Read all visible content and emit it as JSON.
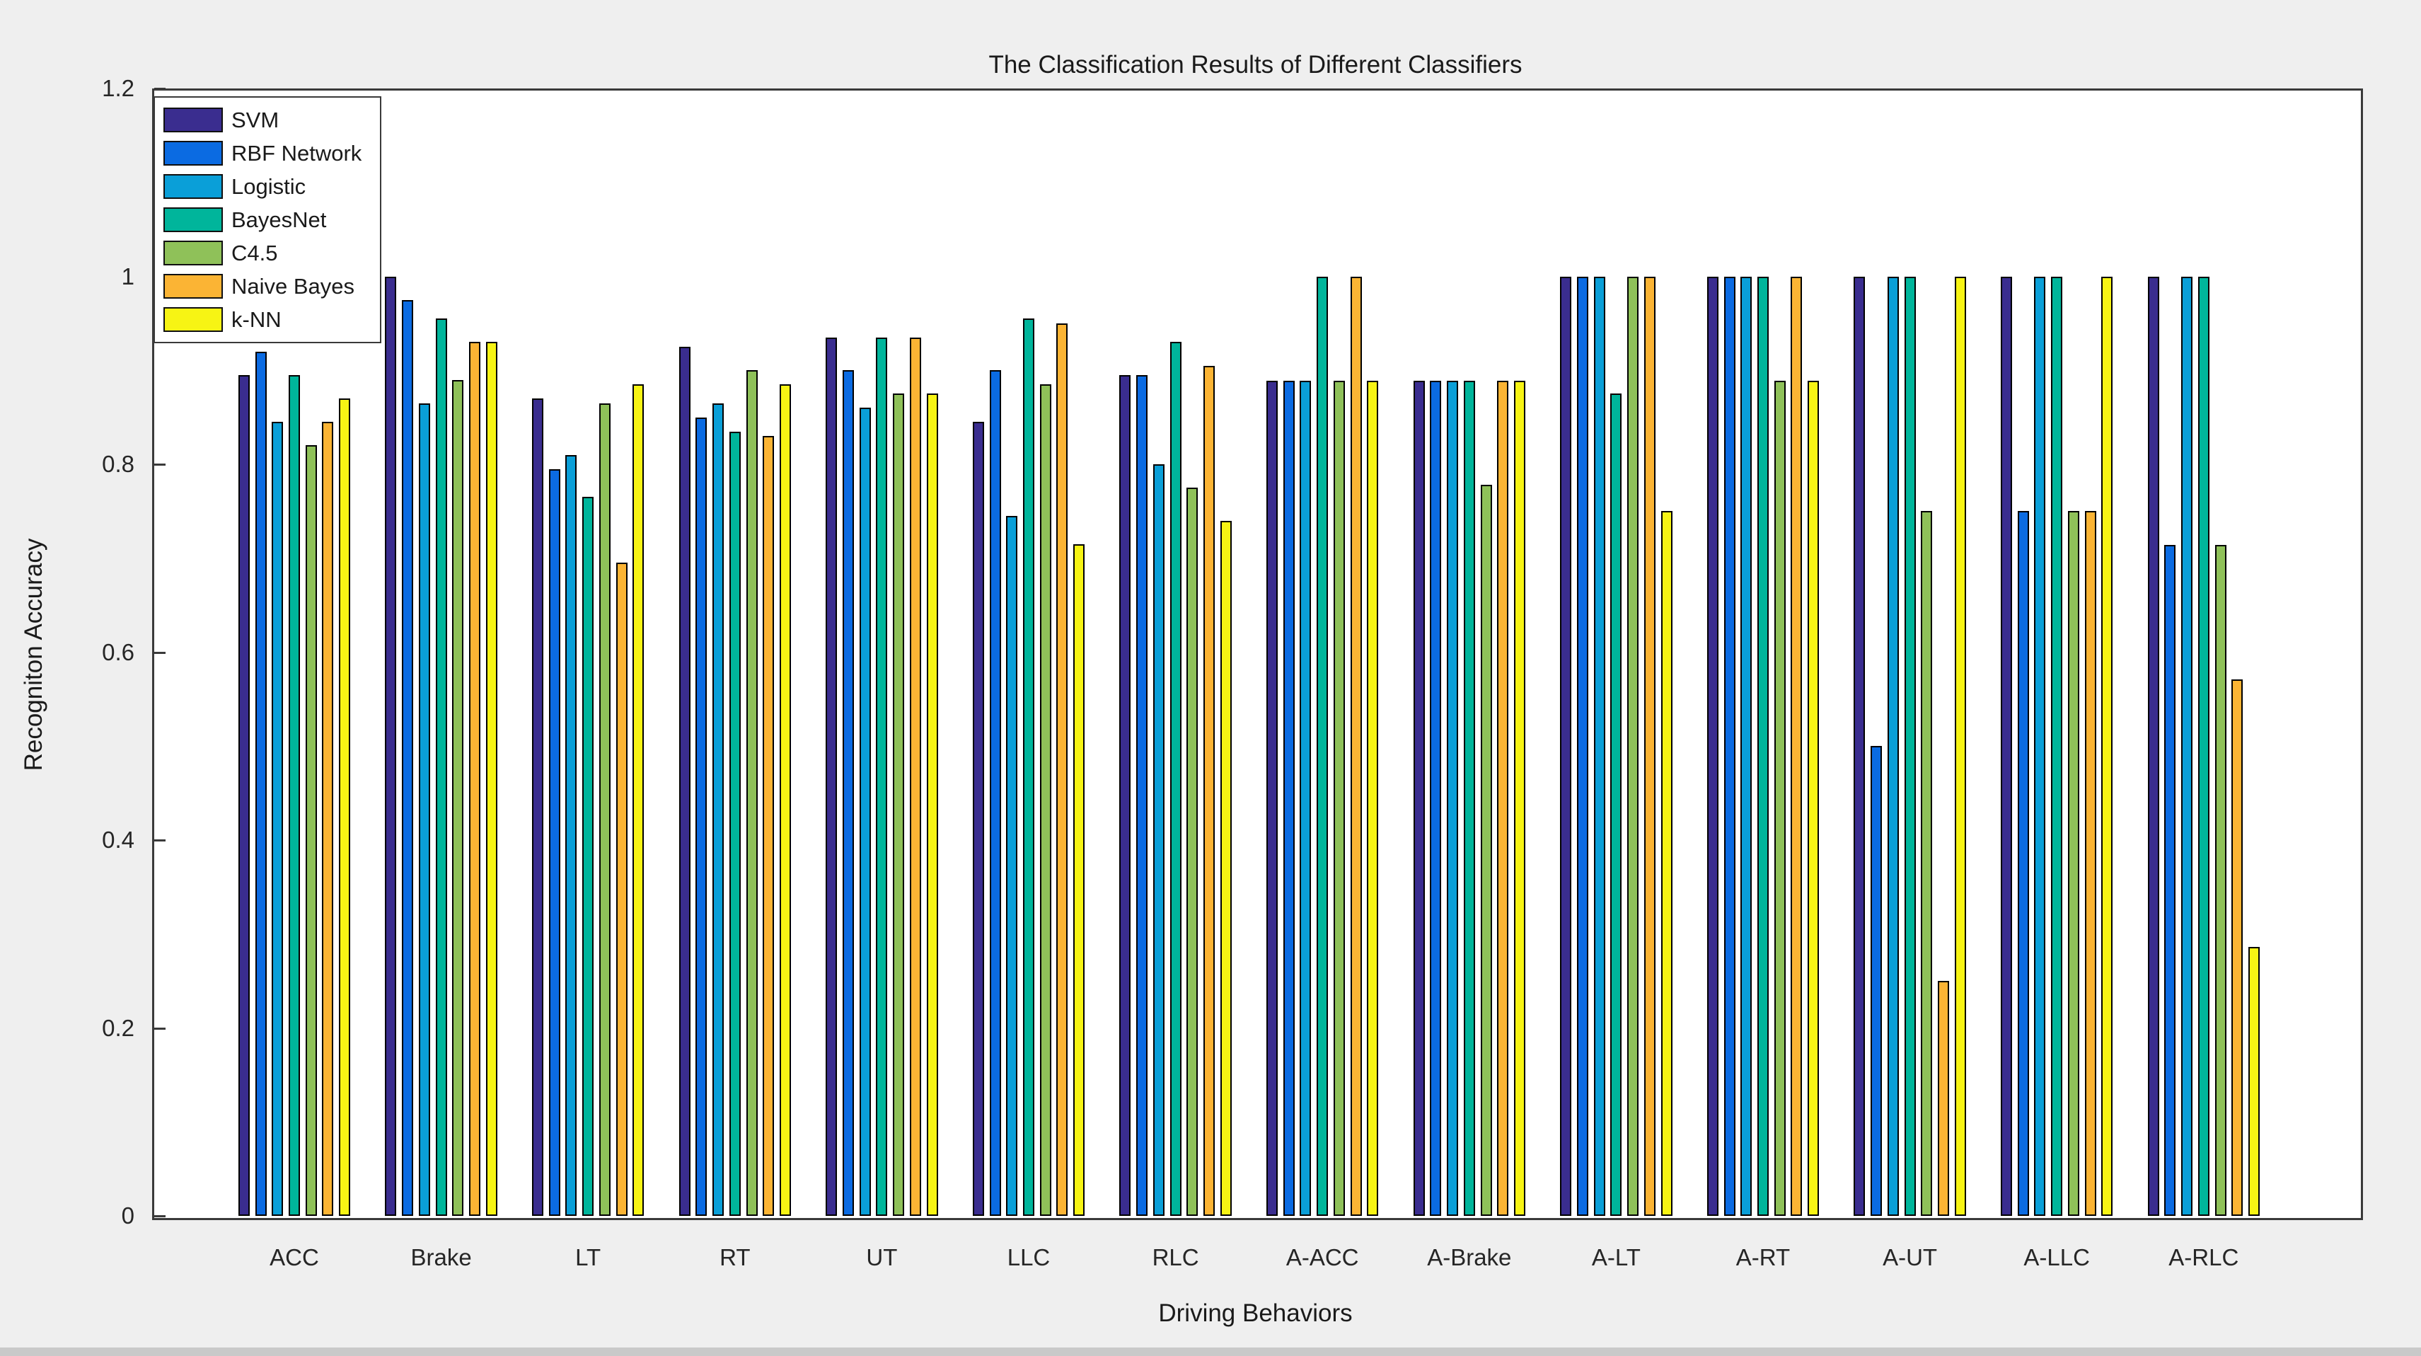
{
  "chart_data": {
    "type": "bar",
    "title": "The Classification Results of Different Classifiers",
    "xlabel": "Driving Behaviors",
    "ylabel": "Recogniton Accuracy",
    "ylim": [
      0,
      1.2
    ],
    "yticks": [
      0,
      0.2,
      0.4,
      0.6,
      0.8,
      1,
      1.2
    ],
    "ytick_labels": [
      "0",
      "0.2",
      "0.4",
      "0.6",
      "0.8",
      "1",
      "1.2"
    ],
    "grid": false,
    "legend_position": "top-left-inside",
    "plot_background": "#FFFFFF",
    "figure_background": "#EFEFEF",
    "categories": [
      "ACC",
      "Brake",
      "LT",
      "RT",
      "UT",
      "LLC",
      "RLC",
      "A-ACC",
      "A-Brake",
      "A-LT",
      "A-RT",
      "A-UT",
      "A-LLC",
      "A-RLC"
    ],
    "series": [
      {
        "name": "SVM",
        "color": "#3A2D8F",
        "values": [
          0.895,
          1.0,
          0.87,
          0.925,
          0.935,
          0.845,
          0.895,
          0.889,
          0.889,
          1.0,
          1.0,
          1.0,
          1.0,
          1.0
        ]
      },
      {
        "name": "RBF Network",
        "color": "#0B6BE2",
        "values": [
          0.92,
          0.975,
          0.795,
          0.85,
          0.9,
          0.9,
          0.895,
          0.889,
          0.889,
          1.0,
          1.0,
          0.5,
          0.75,
          0.714
        ]
      },
      {
        "name": "Logistic",
        "color": "#0A9FD8",
        "values": [
          0.845,
          0.865,
          0.81,
          0.865,
          0.86,
          0.745,
          0.8,
          0.889,
          0.889,
          1.0,
          1.0,
          1.0,
          1.0,
          1.0
        ]
      },
      {
        "name": "BayesNet",
        "color": "#00B59B",
        "values": [
          0.895,
          0.955,
          0.765,
          0.835,
          0.935,
          0.955,
          0.93,
          1.0,
          0.889,
          0.875,
          1.0,
          1.0,
          1.0,
          1.0
        ]
      },
      {
        "name": "C4.5",
        "color": "#8FC159",
        "values": [
          0.82,
          0.89,
          0.865,
          0.9,
          0.875,
          0.885,
          0.775,
          0.889,
          0.778,
          1.0,
          0.889,
          0.75,
          0.75,
          0.714
        ]
      },
      {
        "name": "Naive Bayes",
        "color": "#FBB434",
        "values": [
          0.845,
          0.93,
          0.695,
          0.83,
          0.935,
          0.95,
          0.905,
          1.0,
          0.889,
          1.0,
          1.0,
          0.25,
          0.75,
          0.571
        ]
      },
      {
        "name": "k-NN",
        "color": "#F7F414",
        "values": [
          0.87,
          0.93,
          0.885,
          0.885,
          0.875,
          0.715,
          0.74,
          0.889,
          0.889,
          0.75,
          0.889,
          1.0,
          1.0,
          0.286
        ]
      }
    ]
  }
}
